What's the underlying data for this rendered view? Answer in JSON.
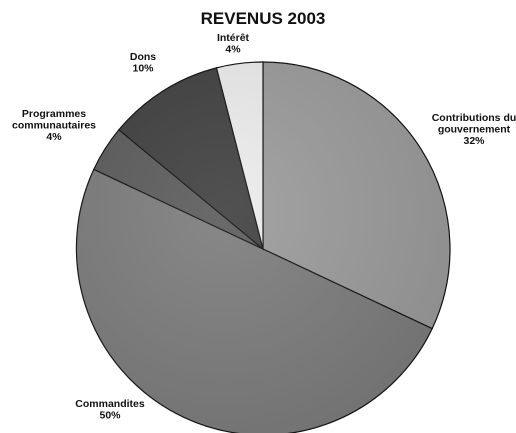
{
  "chart_data": {
    "type": "pie",
    "title": "REVENUS 2003",
    "slices": [
      {
        "label_lines": [
          "Contributions du",
          "gouvernement"
        ],
        "pct_label": "32%",
        "value": 32,
        "color": "#9a9a9a"
      },
      {
        "label_lines": [
          "Commandites"
        ],
        "pct_label": "50%",
        "value": 50,
        "color": "#7b7b7b"
      },
      {
        "label_lines": [
          "Programmes",
          "communautaires"
        ],
        "pct_label": "4%",
        "value": 4,
        "color": "#5a5a5a"
      },
      {
        "label_lines": [
          "Dons"
        ],
        "pct_label": "10%",
        "value": 10,
        "color": "#3e3e3e"
      },
      {
        "label_lines": [
          "Intérêt"
        ],
        "pct_label": "4%",
        "value": 4,
        "color": "#ececec"
      }
    ],
    "start_position": "12 o'clock",
    "direction": "clockwise",
    "legend": "none",
    "labels": "outside slices"
  }
}
